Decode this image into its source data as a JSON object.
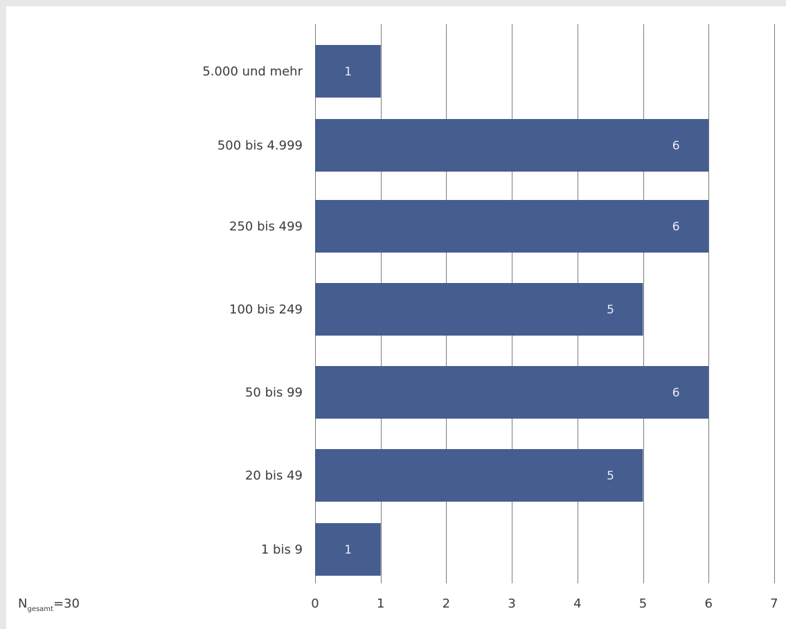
{
  "colors": {
    "bar": "#465d8f",
    "grid": "#7a7a7a",
    "text": "#3b3b3b",
    "value_text": "#e8ecf5",
    "frame": "#e6e7e8"
  },
  "note": {
    "prefix": "N",
    "subscript": "gesamt",
    "suffix": "=30"
  },
  "chart_data": {
    "type": "bar",
    "orientation": "horizontal",
    "categories": [
      "5.000 und mehr",
      "500 bis 4.999",
      "250 bis 499",
      "100 bis 249",
      "50 bis 99",
      "20 bis 49",
      "1 bis 9"
    ],
    "values": [
      1,
      6,
      6,
      5,
      6,
      5,
      1
    ],
    "value_labels": [
      "1",
      "6",
      "6",
      "5",
      "6",
      "5",
      "1"
    ],
    "xlim": [
      0,
      7
    ],
    "xticks": [
      0,
      1,
      2,
      3,
      4,
      5,
      6,
      7
    ],
    "xtick_labels": [
      "0",
      "1",
      "2",
      "3",
      "4",
      "5",
      "6",
      "7"
    ],
    "grid": "vertical",
    "legend": "none",
    "title": "",
    "xlabel": "",
    "ylabel": ""
  }
}
